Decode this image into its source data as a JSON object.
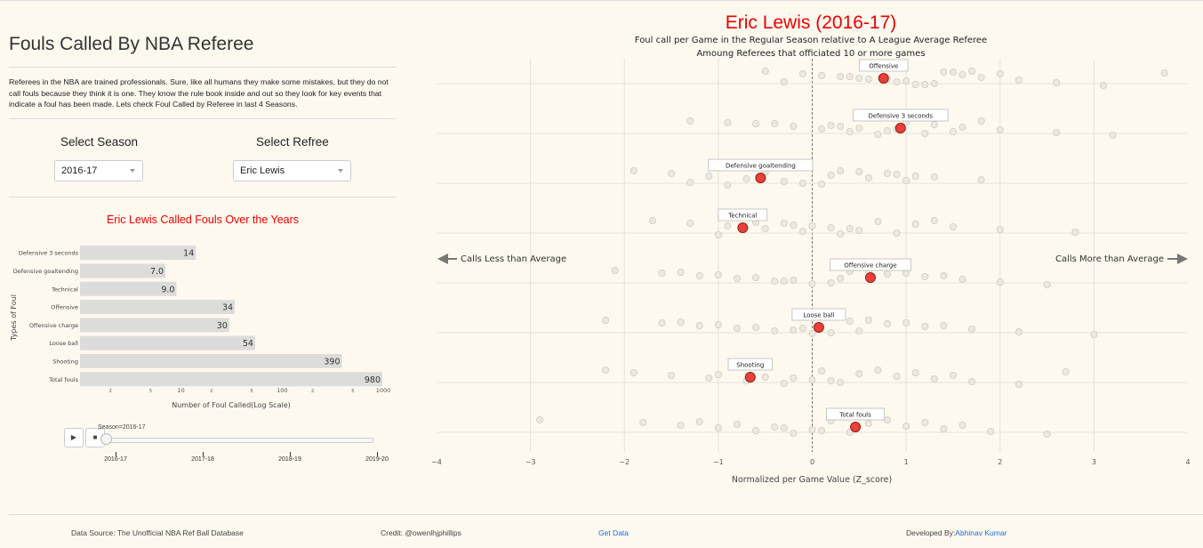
{
  "page": {
    "title": "Fouls Called By NBA Referee",
    "intro": "Referees in the NBA are trained professionals. Sure, like all humans they make some mistakes, but they do not call fouls because they think it is one. They know the rule book inside and out so they look for key events that indicate a foul has been made. Lets check Foul Called by Referee in last 4 Seasons."
  },
  "controls": {
    "season_label": "Select Season",
    "season_value": "2016-17",
    "referee_label": "Select Refree",
    "referee_value": "Eric Lewis"
  },
  "bar_chart": {
    "title": "Eric Lewis Called Fouls Over the Years",
    "ylabel": "Types of Foul",
    "xlabel": "Number of Foul Called(Log Scale)"
  },
  "slider": {
    "label": "Season=2016-17",
    "steps": [
      "2016-17",
      "2017-18",
      "2018-19",
      "2019-20"
    ],
    "play_icon": "play-icon",
    "stop_icon": "stop-icon"
  },
  "main_chart": {
    "title": "Eric Lewis (2016-17)",
    "subtitle1": "Foul call per Game in the Regular Season relative to A League Average Referee",
    "subtitle2": "Amoung Referees that officiated 10 or more games",
    "left_annotation": "Calls Less than Average",
    "right_annotation": "Calls More than Average",
    "xlabel": "Normalized per Game Value (Z_score)"
  },
  "footer": {
    "source": "Data Source: The Unofficial NBA Ref Ball Database",
    "credit": "Credit: @owenlhjphillips",
    "get_data": "Get Data",
    "developed_prefix": "Developed By:",
    "developer": "Abhinav Kumar"
  },
  "colors": {
    "background": "#fdf9ef",
    "highlight": "#e8403a",
    "title_red": "#e00000",
    "bar": "#dcdcda",
    "link": "#1a6ee8"
  },
  "chart_data": [
    {
      "type": "bar",
      "orientation": "horizontal",
      "title": "Eric Lewis Called Fouls Over the Years",
      "xlabel": "Number of Foul Called(Log Scale)",
      "ylabel": "Types of Foul",
      "x_scale": "log",
      "xlim": [
        1,
        1000
      ],
      "x_tick_labels": [
        "2",
        "5",
        "10",
        "2",
        "5",
        "100",
        "2",
        "5",
        "1000"
      ],
      "categories": [
        "Defensive 3 seconds",
        "Defensive goaltending",
        "Technical",
        "Offensive",
        "Offensive charge",
        "Loose ball",
        "Shooting",
        "Total fouls"
      ],
      "values": [
        14,
        7,
        9,
        34,
        30,
        54,
        390,
        980
      ],
      "value_labels": [
        "14",
        "7.0",
        "9.0",
        "34",
        "30",
        "54",
        "390",
        "980"
      ]
    },
    {
      "type": "scatter",
      "title": "Eric Lewis (2016-17)",
      "xlabel": "Normalized per Game Value (Z_score)",
      "xlim": [
        -4,
        4
      ],
      "x_ticks": [
        -4,
        -3,
        -2,
        -1,
        0,
        1,
        2,
        3,
        4
      ],
      "categories": [
        "Offensive",
        "Defensive 3 seconds",
        "Defensive goaltending",
        "Technical",
        "Offensive charge",
        "Loose ball",
        "Shooting",
        "Total fouls"
      ],
      "highlight": [
        0.76,
        0.94,
        -0.55,
        -0.74,
        0.62,
        0.07,
        -0.66,
        0.46
      ],
      "league_distribution": [
        [
          -0.5,
          -0.1,
          0.3,
          0.6,
          0.9,
          1.2,
          1.4,
          1.6,
          1.8,
          2.2,
          2.6,
          3.1,
          3.75,
          0.1,
          0.5,
          1.0,
          1.3,
          1.7,
          2.0,
          0.4,
          0.8,
          -0.3,
          1.1,
          1.5
        ],
        [
          -1.3,
          -0.6,
          -0.2,
          0.1,
          0.4,
          0.7,
          1.0,
          1.3,
          1.6,
          2.0,
          2.6,
          3.2,
          -0.9,
          0.2,
          0.5,
          0.8,
          1.2,
          1.8,
          -0.4,
          0.3,
          0.9,
          1.5
        ],
        [
          -1.9,
          -1.5,
          -1.1,
          -0.7,
          -0.3,
          0.1,
          0.5,
          0.9,
          1.3,
          1.8,
          -1.3,
          -0.9,
          -0.5,
          0.2,
          0.6,
          1.0,
          -0.1,
          0.3,
          0.8,
          1.1
        ],
        [
          -1.7,
          -1.3,
          -0.9,
          -0.5,
          -0.1,
          0.3,
          0.7,
          1.1,
          1.5,
          2.0,
          2.8,
          -1.0,
          -0.6,
          -0.2,
          0.2,
          0.5,
          0.9,
          1.3,
          -0.3,
          0.0,
          0.4
        ],
        [
          -2.1,
          -1.6,
          -1.2,
          -0.8,
          -0.4,
          0.0,
          0.4,
          0.8,
          1.2,
          1.6,
          2.0,
          2.5,
          -1.4,
          -1.0,
          -0.6,
          -0.2,
          0.2,
          0.6,
          1.0,
          1.4,
          0.3,
          -0.3
        ],
        [
          -2.2,
          -1.6,
          -1.2,
          -0.8,
          -0.4,
          0.0,
          0.4,
          0.8,
          1.2,
          1.7,
          2.2,
          3.0,
          -1.4,
          -1.0,
          -0.6,
          -0.2,
          0.2,
          0.6,
          1.0,
          1.4,
          -0.1,
          0.5
        ],
        [
          -2.2,
          -1.9,
          -1.5,
          -1.1,
          -0.7,
          -0.3,
          0.1,
          0.5,
          0.9,
          1.3,
          1.7,
          2.2,
          2.7,
          -1.0,
          -0.5,
          0.0,
          0.3,
          0.7,
          1.1,
          1.5,
          -0.2,
          0.2
        ],
        [
          -2.9,
          -1.8,
          -1.4,
          -1.0,
          -0.6,
          -0.2,
          0.2,
          0.6,
          1.0,
          1.4,
          1.9,
          2.5,
          -1.2,
          -0.8,
          -0.4,
          0.0,
          0.4,
          0.8,
          1.2,
          1.6,
          -0.3,
          0.1
        ]
      ]
    }
  ]
}
